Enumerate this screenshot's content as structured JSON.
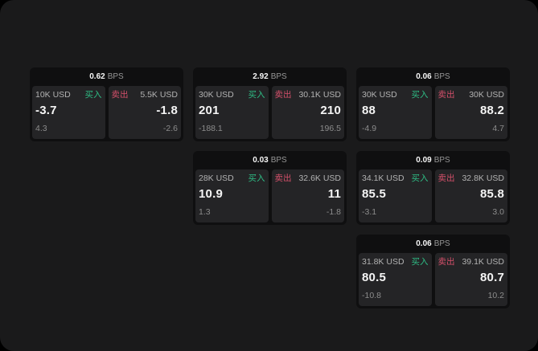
{
  "labels": {
    "bps_unit": "BPS",
    "buy": "买入",
    "sell": "卖出"
  },
  "colors": {
    "page_background": "#000000",
    "panel_background": "#1a1a1b",
    "card_background": "#0f0f10",
    "pane_background": "#242426",
    "primary_text": "#f5f5f5",
    "secondary_text": "#8c8c8c",
    "buy_green": "#2ebd85",
    "sell_red": "#d4506a"
  },
  "cards": [
    {
      "bps": "0.62",
      "buy": {
        "amount": "10K USD",
        "price": "-3.7",
        "change": "4.3"
      },
      "sell": {
        "amount": "5.5K USD",
        "price": "-1.8",
        "change": "-2.6"
      }
    },
    {
      "bps": "2.92",
      "buy": {
        "amount": "30K USD",
        "price": "201",
        "change": "-188.1"
      },
      "sell": {
        "amount": "30.1K USD",
        "price": "210",
        "change": "196.5"
      }
    },
    {
      "bps": "0.06",
      "buy": {
        "amount": "30K USD",
        "price": "88",
        "change": "-4.9"
      },
      "sell": {
        "amount": "30K USD",
        "price": "88.2",
        "change": "4.7"
      }
    },
    {
      "bps": "0.03",
      "buy": {
        "amount": "28K USD",
        "price": "10.9",
        "change": "1.3"
      },
      "sell": {
        "amount": "32.6K USD",
        "price": "11",
        "change": "-1.8"
      }
    },
    {
      "bps": "0.09",
      "buy": {
        "amount": "34.1K USD",
        "price": "85.5",
        "change": "-3.1"
      },
      "sell": {
        "amount": "32.8K USD",
        "price": "85.8",
        "change": "3.0"
      }
    },
    {
      "bps": "0.06",
      "buy": {
        "amount": "31.8K USD",
        "price": "80.5",
        "change": "-10.8"
      },
      "sell": {
        "amount": "39.1K USD",
        "price": "80.7",
        "change": "10.2"
      }
    }
  ]
}
